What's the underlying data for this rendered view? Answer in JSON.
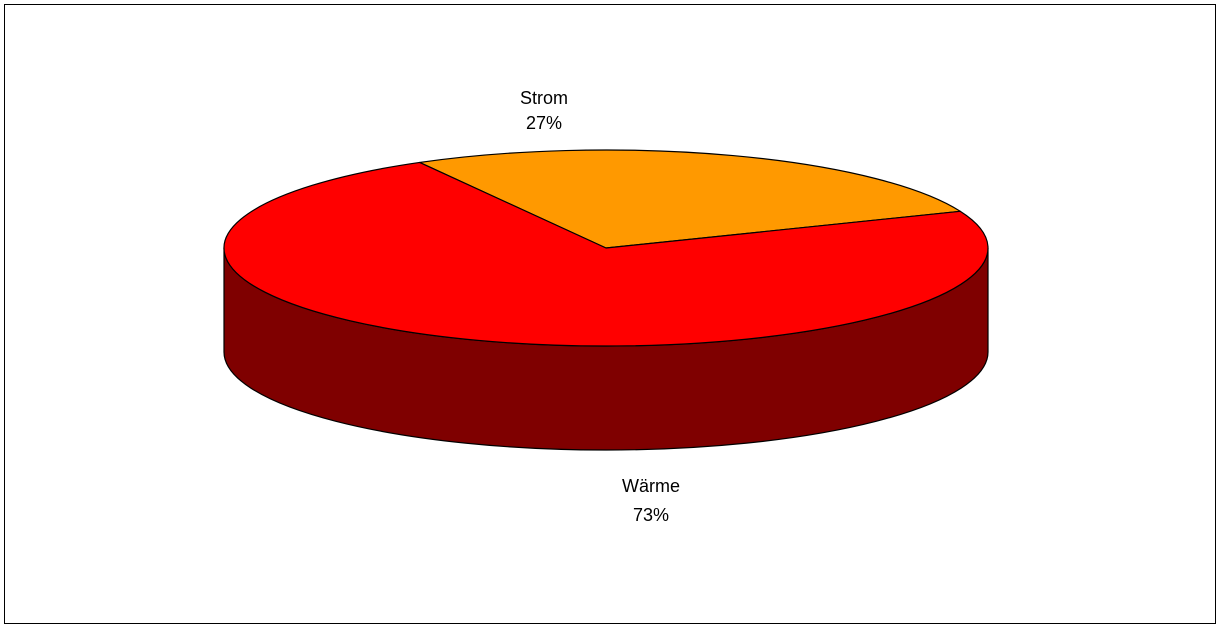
{
  "chart_data": {
    "type": "pie",
    "title": "",
    "categories": [
      "Strom",
      "Wärme"
    ],
    "values": [
      27,
      73
    ],
    "percent_labels": [
      "27%",
      "73%"
    ],
    "colors": {
      "Strom": {
        "top": "#FF9900",
        "side": "#7F4C00"
      },
      "Wärme": {
        "top": "#FF0000",
        "side": "#7F0000"
      }
    },
    "legend": "none",
    "style": "3d"
  }
}
